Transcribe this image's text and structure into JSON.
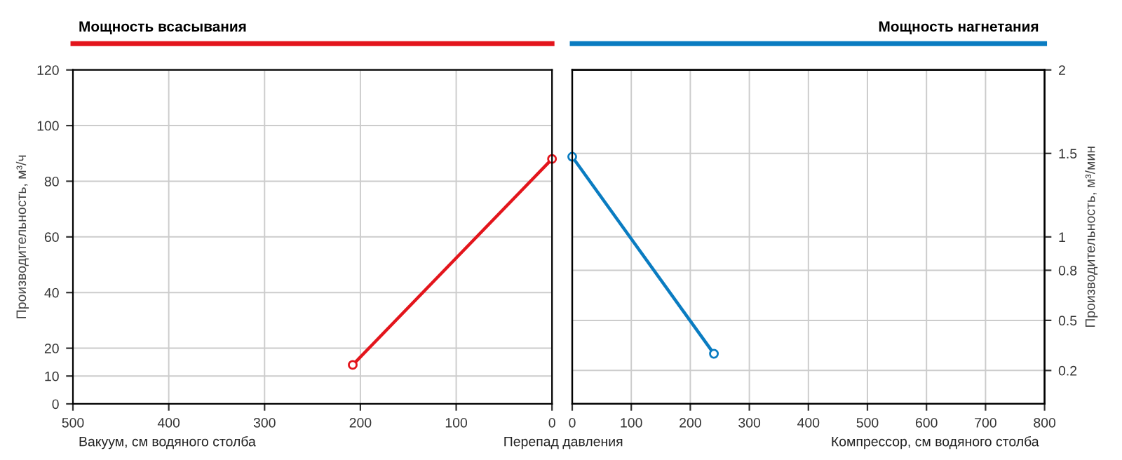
{
  "chart_data": [
    {
      "type": "line",
      "title": "Мощность всасывания",
      "xlabel": "Вакуум, см водяного столба",
      "ylabel": "Производительность, м³/ч",
      "annotations": [
        "Перепад давления"
      ],
      "series": [
        {
          "x": [
            208,
            0
          ],
          "values": [
            14,
            88
          ],
          "color": "#e3151c"
        }
      ],
      "xlim": [
        500,
        0
      ],
      "xticks": [
        500,
        400,
        300,
        200,
        100,
        0
      ],
      "ylim": [
        0,
        120
      ],
      "yticks": [
        0,
        10,
        20,
        40,
        60,
        80,
        100,
        120
      ],
      "grid": true,
      "marker": "circle",
      "line_style": "solid"
    },
    {
      "type": "line",
      "title": "Мощность нагнетания",
      "xlabel": "Компрессор, см водяного столба",
      "y2label": "Производительность, м³/мин",
      "series": [
        {
          "x": [
            0,
            240
          ],
          "values": [
            1.48,
            0.3
          ],
          "color": "#0a7cc1",
          "axis": "y2"
        }
      ],
      "xlim": [
        0,
        800
      ],
      "xticks": [
        0,
        100,
        200,
        300,
        400,
        500,
        600,
        700,
        800
      ],
      "y2lim": [
        0,
        2
      ],
      "y2ticks": [
        0.2,
        0.5,
        0.8,
        1,
        1.5,
        2
      ],
      "grid": true,
      "marker": "circle",
      "line_style": "solid"
    }
  ]
}
